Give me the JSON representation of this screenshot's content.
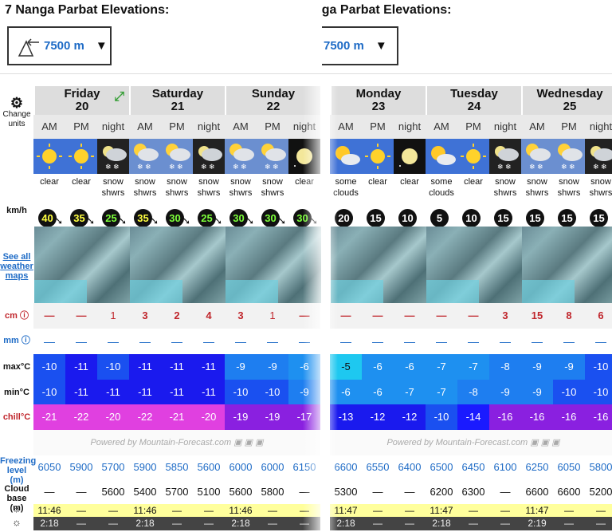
{
  "title_left": "7 Nanga Parbat Elevations:",
  "title_right": "nga Parbat Elevations:",
  "elevation": {
    "value": "7500 m"
  },
  "sidebar": {
    "change_units": "Change units",
    "wind_unit": "km/h",
    "see_all_maps": "See all weather maps",
    "snow_unit": "cm",
    "rain_unit": "mm",
    "max": "max°C",
    "min": "min°C",
    "chill": "chill°C",
    "freezing": "Freezing level (m)",
    "cloud": "Cloud base (m)"
  },
  "period_labels": [
    "AM",
    "PM",
    "night"
  ],
  "powered_by": "Powered by Mountain-Forecast.com",
  "left": {
    "days": [
      {
        "name": "Friday",
        "date": "20"
      },
      {
        "name": "Saturday",
        "date": "21"
      },
      {
        "name": "Sunday",
        "date": "22"
      }
    ],
    "desc": [
      "clear",
      "clear",
      "snow shwrs",
      "snow shwrs",
      "snow shwrs",
      "snow shwrs",
      "snow shwrs",
      "snow shwrs",
      "clear"
    ],
    "wind": [
      "40",
      "35",
      "25",
      "35",
      "30",
      "25",
      "30",
      "30",
      "30"
    ],
    "snow": [
      "—",
      "—",
      "1",
      "3",
      "2",
      "4",
      "3",
      "1",
      "—"
    ],
    "rain": [
      "—",
      "—",
      "—",
      "—",
      "—",
      "—",
      "—",
      "—",
      "—"
    ],
    "max": [
      "-10",
      "-11",
      "-10",
      "-11",
      "-11",
      "-11",
      "-9",
      "-9",
      "-6"
    ],
    "min": [
      "-10",
      "-11",
      "-11",
      "-11",
      "-11",
      "-11",
      "-10",
      "-10",
      "-9"
    ],
    "chill": [
      "-21",
      "-22",
      "-20",
      "-22",
      "-21",
      "-20",
      "-19",
      "-19",
      "-17"
    ],
    "freezing": [
      "6050",
      "5900",
      "5700",
      "5900",
      "5850",
      "5600",
      "6000",
      "6000",
      "6150"
    ],
    "cloud": [
      "—",
      "—",
      "5600",
      "5400",
      "5700",
      "5100",
      "5600",
      "5800",
      "—"
    ],
    "sunrise": [
      "11:46",
      "—",
      "—",
      "11:46",
      "—",
      "—",
      "11:46",
      "—",
      "—"
    ],
    "sunset": [
      "2:18",
      "—",
      "—",
      "2:18",
      "—",
      "—",
      "2:18",
      "—",
      "—"
    ]
  },
  "right": {
    "days": [
      {
        "name": "Monday",
        "date": "23"
      },
      {
        "name": "Tuesday",
        "date": "24"
      },
      {
        "name": "Wednesday",
        "date": "25"
      }
    ],
    "desc": [
      "some clouds",
      "clear",
      "clear",
      "some clouds",
      "clear",
      "snow shwrs",
      "snow shwrs",
      "snow shwrs",
      "snow shwrs"
    ],
    "wind": [
      "20",
      "15",
      "10",
      "5",
      "10",
      "15",
      "15",
      "15",
      "15"
    ],
    "snow": [
      "—",
      "—",
      "—",
      "—",
      "—",
      "3",
      "15",
      "8",
      "6"
    ],
    "rain": [
      "—",
      "—",
      "—",
      "—",
      "—",
      "—",
      "—",
      "—",
      "—"
    ],
    "max": [
      "-5",
      "-6",
      "-6",
      "-7",
      "-7",
      "-8",
      "-9",
      "-9",
      "-10"
    ],
    "min": [
      "-6",
      "-6",
      "-7",
      "-7",
      "-8",
      "-9",
      "-9",
      "-10",
      "-10"
    ],
    "chill": [
      "-13",
      "-12",
      "-12",
      "-10",
      "-14",
      "-16",
      "-16",
      "-16",
      "-16"
    ],
    "freezing": [
      "6600",
      "6550",
      "6400",
      "6500",
      "6450",
      "6100",
      "6250",
      "6050",
      "5800"
    ],
    "cloud": [
      "5300",
      "—",
      "—",
      "6200",
      "6300",
      "—",
      "6600",
      "6600",
      "5200"
    ],
    "sunrise": [
      "11:47",
      "—",
      "—",
      "11:47",
      "—",
      "—",
      "11:47",
      "—",
      "—"
    ],
    "sunset": [
      "2:18",
      "—",
      "—",
      "2:18",
      "—",
      "—",
      "2:19",
      "—",
      "—"
    ]
  }
}
